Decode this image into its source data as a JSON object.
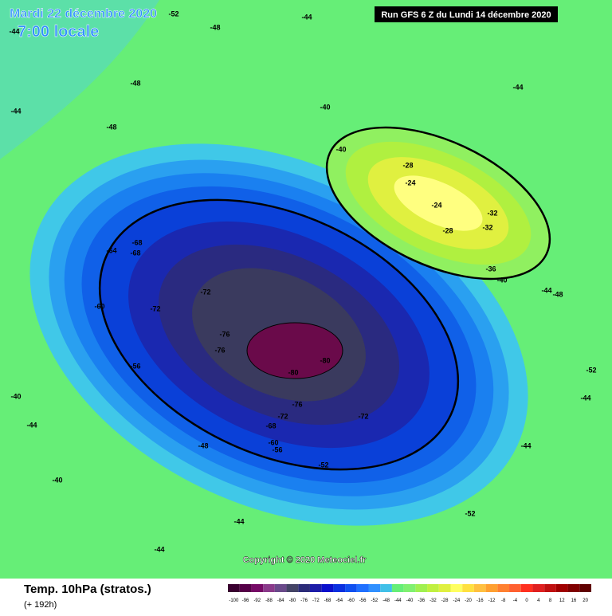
{
  "header": {
    "date": "Mardi 22 décembre 2020",
    "time": "7:00 locale",
    "run": "Run GFS 6 Z du Lundi 14 décembre 2020"
  },
  "footer": {
    "title": "Temp. 10hPa (stratos.)",
    "lead": "(+ 192h)",
    "copyright": "Copyright © 2020 Meteociel.fr"
  },
  "colorbar": {
    "ticks": [
      -100,
      -96,
      -92,
      -88,
      -84,
      -80,
      -76,
      -72,
      -68,
      -64,
      -60,
      -56,
      -52,
      -48,
      -44,
      -40,
      -36,
      -32,
      -28,
      -24,
      -20,
      -16,
      -12,
      -8,
      -4,
      0,
      4,
      8,
      12,
      16,
      20
    ],
    "colors": [
      "#3a0030",
      "#560048",
      "#760a66",
      "#8a3a8a",
      "#6a4a8a",
      "#444466",
      "#2c2c78",
      "#1c1ca8",
      "#0a10cc",
      "#0a30e0",
      "#1050f0",
      "#2070ff",
      "#3090ff",
      "#40c0e8",
      "#66ee77",
      "#80f070",
      "#a0f050",
      "#c0f040",
      "#e0f040",
      "#ffff60",
      "#ffe040",
      "#ffc040",
      "#ffa030",
      "#ff8030",
      "#ff6030",
      "#ff3020",
      "#e02020",
      "#c01010",
      "#a00000",
      "#800000",
      "#600000"
    ]
  },
  "contour_labels": [
    "-52",
    "-48",
    "-44",
    "-44",
    "-44",
    "-48",
    "-48",
    "-44",
    "-40",
    "-40",
    "-28",
    "-24",
    "-24",
    "-32",
    "-28",
    "-32",
    "-36",
    "-40",
    "-44",
    "-44",
    "-64",
    "-68",
    "-68",
    "-60",
    "-72",
    "-72",
    "-76",
    "-76",
    "-80",
    "-80",
    "-76",
    "-72",
    "-68",
    "-72",
    "-60",
    "-56",
    "-56",
    "-52",
    "-52",
    "-44",
    "-44",
    "-40",
    "-40",
    "-44",
    "-48",
    "-52",
    "-48",
    "-44"
  ]
}
